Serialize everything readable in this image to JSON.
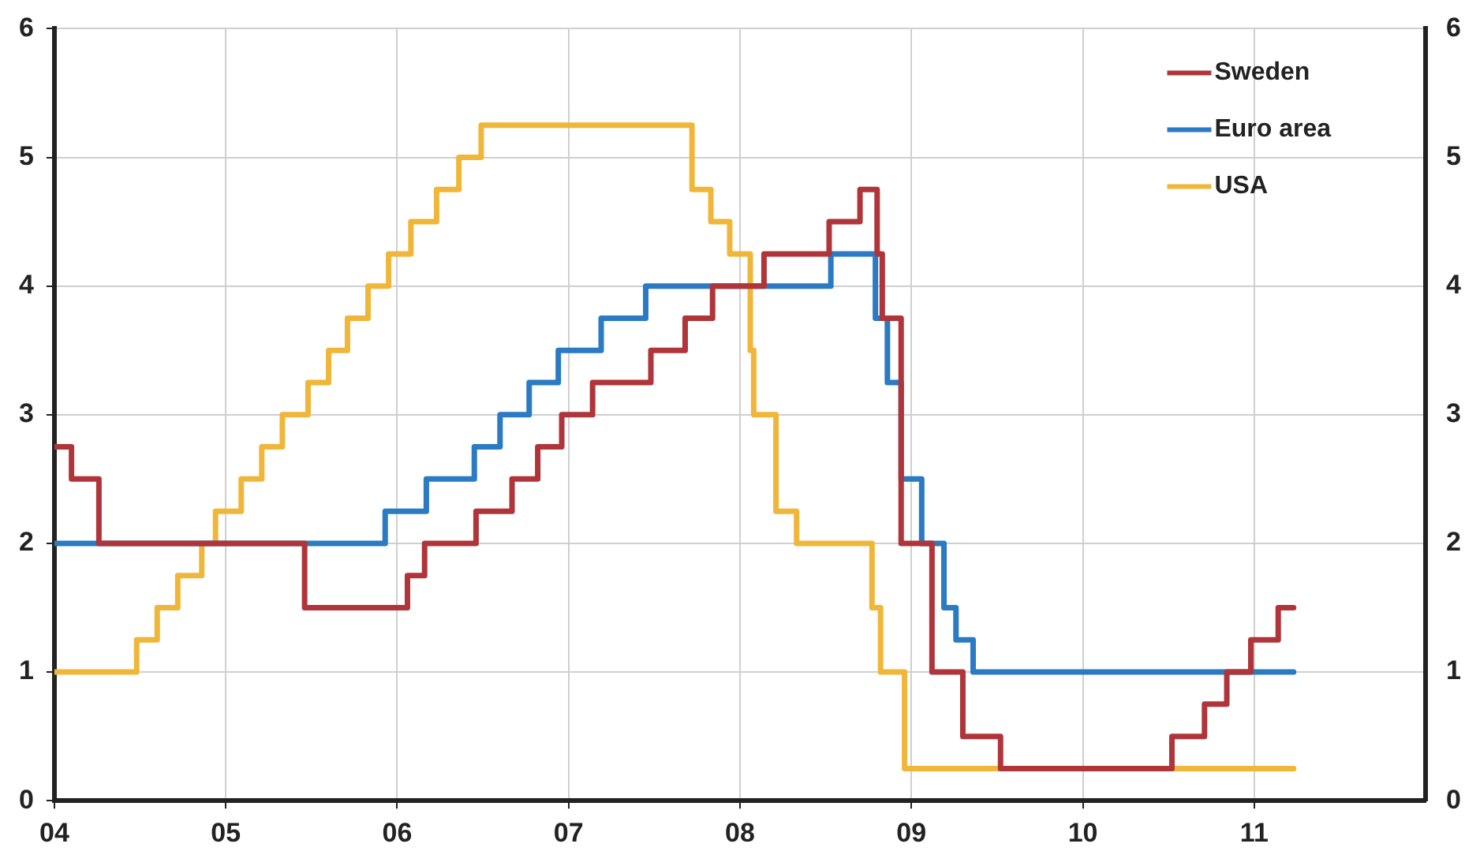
{
  "chart_data": {
    "type": "step",
    "xlim": [
      2004,
      2012
    ],
    "xticks": [
      {
        "value": 2004,
        "label": "04"
      },
      {
        "value": 2005,
        "label": "05"
      },
      {
        "value": 2006,
        "label": "06"
      },
      {
        "value": 2007,
        "label": "07"
      },
      {
        "value": 2008,
        "label": "08"
      },
      {
        "value": 2009,
        "label": "09"
      },
      {
        "value": 2010,
        "label": "10"
      },
      {
        "value": 2011,
        "label": "11"
      }
    ],
    "ylim": [
      0,
      6
    ],
    "yticks": [
      0,
      1,
      2,
      3,
      4,
      5,
      6
    ],
    "y2lim": [
      0,
      6
    ],
    "y2ticks": [
      0,
      1,
      2,
      3,
      4,
      5,
      6
    ],
    "grid": true,
    "legend": "top right",
    "marker": "none",
    "line_style": "solid",
    "series": [
      {
        "name": "Sweden",
        "color": "#b0353a",
        "x": [
          2004.0,
          2004.1,
          2004.26,
          2005.46,
          2006.06,
          2006.16,
          2006.46,
          2006.67,
          2006.82,
          2006.96,
          2007.14,
          2007.48,
          2007.68,
          2007.84,
          2008.14,
          2008.52,
          2008.7,
          2008.8,
          2008.83,
          2008.94,
          2009.12,
          2009.3,
          2009.52,
          2010.52,
          2010.71,
          2010.84,
          2010.98,
          2011.14,
          2011.23
        ],
        "values": [
          2.75,
          2.5,
          2.0,
          1.5,
          1.75,
          2.0,
          2.25,
          2.5,
          2.75,
          3.0,
          3.25,
          3.5,
          3.75,
          4.0,
          4.25,
          4.5,
          4.75,
          4.25,
          3.75,
          2.0,
          1.0,
          0.5,
          0.25,
          0.5,
          0.75,
          1.0,
          1.25,
          1.5,
          1.5
        ]
      },
      {
        "name": "Euro area",
        "color": "#2a7ac4",
        "x": [
          2004.0,
          2005.93,
          2006.17,
          2006.45,
          2006.6,
          2006.77,
          2006.94,
          2007.19,
          2007.45,
          2008.53,
          2008.79,
          2008.86,
          2008.94,
          2009.06,
          2009.19,
          2009.26,
          2009.36,
          2011.23
        ],
        "values": [
          2.0,
          2.25,
          2.5,
          2.75,
          3.0,
          3.25,
          3.5,
          3.75,
          4.0,
          4.25,
          3.75,
          3.25,
          2.5,
          2.0,
          1.5,
          1.25,
          1.0,
          1.0
        ]
      },
      {
        "name": "USA",
        "color": "#f0b63a",
        "x": [
          2004.0,
          2004.48,
          2004.6,
          2004.72,
          2004.86,
          2004.94,
          2005.09,
          2005.21,
          2005.33,
          2005.48,
          2005.6,
          2005.71,
          2005.83,
          2005.95,
          2006.08,
          2006.23,
          2006.36,
          2006.49,
          2007.72,
          2007.83,
          2007.94,
          2008.06,
          2008.08,
          2008.21,
          2008.33,
          2008.77,
          2008.82,
          2008.96,
          2011.23
        ],
        "values": [
          1.0,
          1.25,
          1.5,
          1.75,
          2.0,
          2.25,
          2.5,
          2.75,
          3.0,
          3.25,
          3.5,
          3.75,
          4.0,
          4.25,
          4.5,
          4.75,
          5.0,
          5.25,
          4.75,
          4.5,
          4.25,
          3.5,
          3.0,
          2.25,
          2.0,
          1.5,
          1.0,
          0.25,
          0.25
        ]
      }
    ]
  }
}
